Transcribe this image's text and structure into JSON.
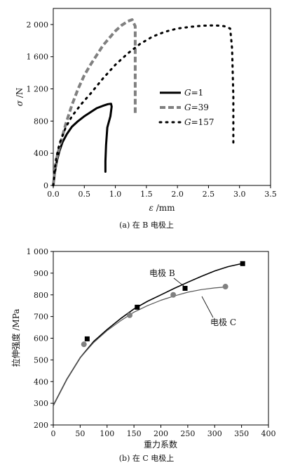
{
  "chart_data": [
    {
      "type": "line",
      "caption": "(a) 在 B 电极上",
      "xlabel_symbol": "ε",
      "xlabel_unit": " /mm",
      "ylabel_symbol": "σ",
      "ylabel_unit": " /N",
      "xlim": [
        0,
        3.5
      ],
      "ylim": [
        0,
        2200
      ],
      "xticks": [
        0,
        0.5,
        1.0,
        1.5,
        2.0,
        2.5,
        3.0,
        3.5
      ],
      "xtick_labels": [
        "0.0",
        "0.5",
        "1.0",
        "1.5",
        "2.0",
        "2.5",
        "3.0",
        "3.5"
      ],
      "yticks": [
        0,
        400,
        800,
        1200,
        1600,
        2000
      ],
      "ytick_labels": [
        "0",
        "400",
        "800",
        "1 200",
        "1 600",
        "2 000"
      ],
      "legend_position": "center-right",
      "series": [
        {
          "name": "G=1",
          "name_var": "G",
          "name_val": "=1",
          "style": "solid",
          "color": "#000000",
          "x": [
            0.0,
            0.01,
            0.03,
            0.06,
            0.1,
            0.15,
            0.22,
            0.3,
            0.4,
            0.5,
            0.6,
            0.7,
            0.8,
            0.88,
            0.93,
            0.94,
            0.92,
            0.87,
            0.85,
            0.84,
            0.84
          ],
          "y": [
            0,
            60,
            180,
            310,
            430,
            540,
            640,
            730,
            800,
            860,
            910,
            960,
            990,
            1010,
            1015,
            980,
            860,
            720,
            500,
            300,
            170
          ]
        },
        {
          "name": "G=39",
          "name_var": "G",
          "name_val": "=39",
          "style": "dashed",
          "color": "#808080",
          "x": [
            0.0,
            0.02,
            0.05,
            0.1,
            0.2,
            0.3,
            0.4,
            0.5,
            0.6,
            0.7,
            0.8,
            0.9,
            1.0,
            1.1,
            1.2,
            1.27,
            1.32,
            1.32,
            1.32
          ],
          "y": [
            0,
            150,
            320,
            480,
            760,
            1000,
            1200,
            1370,
            1500,
            1620,
            1740,
            1830,
            1920,
            1990,
            2040,
            2060,
            1980,
            1400,
            880
          ]
        },
        {
          "name": "G=157",
          "name_var": "G",
          "name_val": "=157",
          "style": "dotted",
          "color": "#000000",
          "x": [
            0.0,
            0.02,
            0.05,
            0.1,
            0.2,
            0.3,
            0.45,
            0.6,
            0.8,
            1.0,
            1.2,
            1.4,
            1.6,
            1.8,
            2.0,
            2.2,
            2.4,
            2.6,
            2.75,
            2.85,
            2.88,
            2.9,
            2.9
          ],
          "y": [
            0,
            180,
            350,
            520,
            720,
            860,
            1010,
            1140,
            1330,
            1500,
            1640,
            1760,
            1850,
            1910,
            1950,
            1970,
            1985,
            1990,
            1980,
            1950,
            1700,
            1100,
            500
          ]
        }
      ]
    },
    {
      "type": "scatter",
      "caption": "(b) 在 C 电极上",
      "xlabel": "重力系数",
      "ylabel": "拉伸强度 /MPa",
      "xlim": [
        0,
        400
      ],
      "ylim": [
        200,
        1000
      ],
      "xticks": [
        0,
        50,
        100,
        150,
        200,
        250,
        300,
        350,
        400
      ],
      "xtick_labels": [
        "0",
        "50",
        "100",
        "150",
        "200",
        "250",
        "300",
        "350",
        "400"
      ],
      "yticks": [
        200,
        300,
        400,
        500,
        600,
        700,
        800,
        900,
        1000
      ],
      "ytick_labels": [
        "200",
        "300",
        "400",
        "500",
        "600",
        "700",
        "800",
        "900",
        "1 000"
      ],
      "series": [
        {
          "name": "电极 B",
          "marker": "square",
          "color": "#000000",
          "line_color": "#000000",
          "x": [
            63,
            156,
            245,
            352
          ],
          "y": [
            597,
            743,
            830,
            944
          ],
          "fit_x": [
            0,
            25,
            50,
            75,
            100,
            125,
            150,
            175,
            200,
            225,
            250,
            275,
            300,
            325,
            352
          ],
          "fit_y": [
            290,
            410,
            510,
            585,
            640,
            690,
            735,
            770,
            800,
            830,
            858,
            885,
            910,
            930,
            945
          ]
        },
        {
          "name": "电极 C",
          "marker": "circle",
          "color": "#808080",
          "line_color": "#555555",
          "x": [
            57,
            142,
            223,
            320
          ],
          "y": [
            572,
            706,
            800,
            838
          ],
          "fit_x": [
            0,
            25,
            50,
            75,
            100,
            125,
            150,
            175,
            200,
            225,
            250,
            275,
            300,
            320
          ],
          "fit_y": [
            290,
            410,
            510,
            580,
            635,
            680,
            720,
            750,
            775,
            795,
            812,
            824,
            832,
            836
          ]
        }
      ]
    }
  ]
}
